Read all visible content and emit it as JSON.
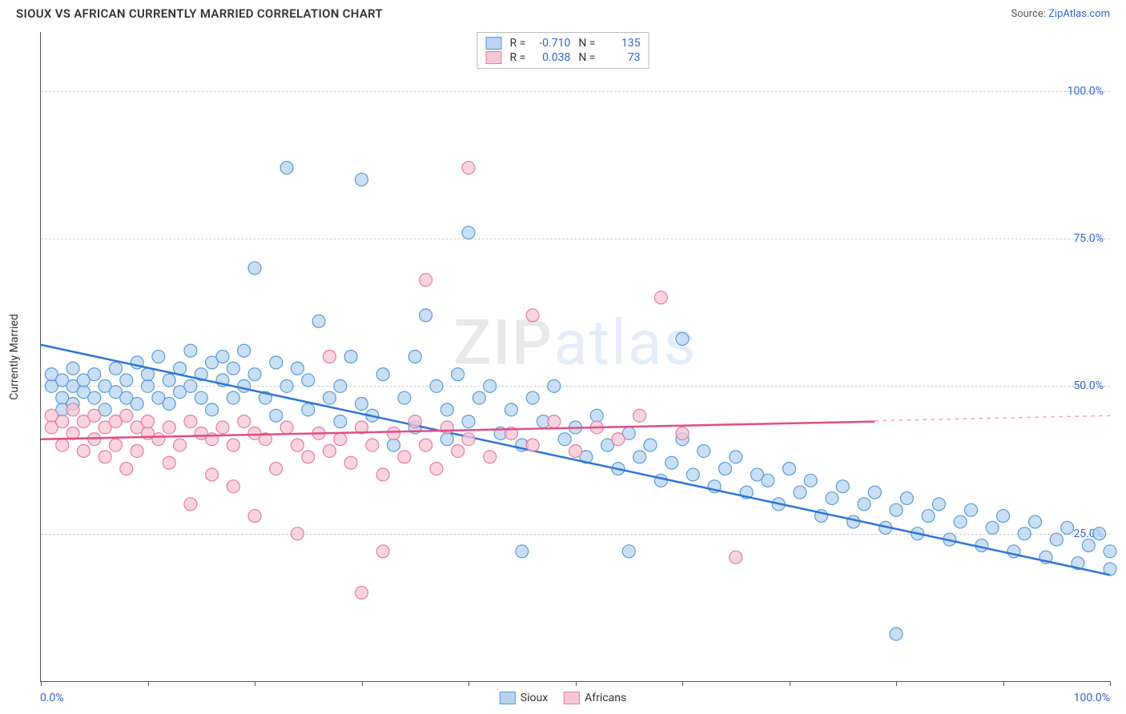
{
  "title": "SIOUX VS AFRICAN CURRENTLY MARRIED CORRELATION CHART",
  "source_prefix": "Source: ",
  "source_link": "ZipAtlas.com",
  "ylabel": "Currently Married",
  "watermark_z": "ZIP",
  "watermark_rest": "atlas",
  "chart": {
    "type": "scatter",
    "xlim": [
      0,
      100
    ],
    "ylim": [
      0,
      110
    ],
    "y_gridlines": [
      25,
      50,
      75,
      100
    ],
    "y_tick_labels": [
      "25.0%",
      "50.0%",
      "75.0%",
      "100.0%"
    ],
    "x_ticks": [
      0,
      10,
      20,
      30,
      40,
      50,
      60,
      70,
      80,
      90,
      100
    ],
    "x_tick_labels_shown": {
      "0": "0.0%",
      "100": "100.0%"
    },
    "background_color": "#ffffff",
    "grid_color": "#cccccc",
    "marker_radius": 8,
    "marker_stroke_width": 1.2,
    "trend_line_width": 2.5,
    "series": [
      {
        "name": "Sioux",
        "fill": "#b8d4f0",
        "stroke": "#5a9bd5",
        "line_color": "#2e75d6",
        "R": "-0.710",
        "N": "135",
        "trend": {
          "x1": 0,
          "y1": 57,
          "x2": 100,
          "y2": 18,
          "dash_from_x": 100
        },
        "points": [
          [
            1,
            50
          ],
          [
            1,
            52
          ],
          [
            2,
            48
          ],
          [
            2,
            46
          ],
          [
            2,
            51
          ],
          [
            3,
            50
          ],
          [
            3,
            53
          ],
          [
            3,
            47
          ],
          [
            4,
            49
          ],
          [
            4,
            51
          ],
          [
            5,
            48
          ],
          [
            5,
            52
          ],
          [
            6,
            50
          ],
          [
            6,
            46
          ],
          [
            7,
            49
          ],
          [
            7,
            53
          ],
          [
            8,
            48
          ],
          [
            8,
            51
          ],
          [
            9,
            47
          ],
          [
            9,
            54
          ],
          [
            10,
            50
          ],
          [
            10,
            52
          ],
          [
            11,
            48
          ],
          [
            11,
            55
          ],
          [
            12,
            51
          ],
          [
            12,
            47
          ],
          [
            13,
            53
          ],
          [
            13,
            49
          ],
          [
            14,
            56
          ],
          [
            14,
            50
          ],
          [
            15,
            52
          ],
          [
            15,
            48
          ],
          [
            16,
            54
          ],
          [
            16,
            46
          ],
          [
            17,
            55
          ],
          [
            17,
            51
          ],
          [
            18,
            53
          ],
          [
            18,
            48
          ],
          [
            19,
            56
          ],
          [
            19,
            50
          ],
          [
            20,
            70
          ],
          [
            20,
            52
          ],
          [
            21,
            48
          ],
          [
            22,
            54
          ],
          [
            22,
            45
          ],
          [
            23,
            87
          ],
          [
            23,
            50
          ],
          [
            24,
            53
          ],
          [
            25,
            51
          ],
          [
            25,
            46
          ],
          [
            26,
            61
          ],
          [
            27,
            48
          ],
          [
            28,
            50
          ],
          [
            28,
            44
          ],
          [
            29,
            55
          ],
          [
            30,
            85
          ],
          [
            30,
            47
          ],
          [
            31,
            45
          ],
          [
            32,
            52
          ],
          [
            33,
            40
          ],
          [
            34,
            48
          ],
          [
            35,
            55
          ],
          [
            35,
            43
          ],
          [
            36,
            62
          ],
          [
            37,
            50
          ],
          [
            38,
            46
          ],
          [
            38,
            41
          ],
          [
            39,
            52
          ],
          [
            40,
            76
          ],
          [
            40,
            44
          ],
          [
            41,
            48
          ],
          [
            42,
            50
          ],
          [
            43,
            42
          ],
          [
            44,
            46
          ],
          [
            45,
            40
          ],
          [
            45,
            22
          ],
          [
            46,
            48
          ],
          [
            47,
            44
          ],
          [
            48,
            50
          ],
          [
            49,
            41
          ],
          [
            50,
            43
          ],
          [
            51,
            38
          ],
          [
            52,
            45
          ],
          [
            53,
            40
          ],
          [
            54,
            36
          ],
          [
            55,
            42
          ],
          [
            55,
            22
          ],
          [
            56,
            38
          ],
          [
            57,
            40
          ],
          [
            58,
            34
          ],
          [
            59,
            37
          ],
          [
            60,
            41
          ],
          [
            60,
            58
          ],
          [
            61,
            35
          ],
          [
            62,
            39
          ],
          [
            63,
            33
          ],
          [
            64,
            36
          ],
          [
            65,
            38
          ],
          [
            66,
            32
          ],
          [
            67,
            35
          ],
          [
            68,
            34
          ],
          [
            69,
            30
          ],
          [
            70,
            36
          ],
          [
            71,
            32
          ],
          [
            72,
            34
          ],
          [
            73,
            28
          ],
          [
            74,
            31
          ],
          [
            75,
            33
          ],
          [
            76,
            27
          ],
          [
            77,
            30
          ],
          [
            78,
            32
          ],
          [
            79,
            26
          ],
          [
            80,
            29
          ],
          [
            81,
            31
          ],
          [
            82,
            25
          ],
          [
            83,
            28
          ],
          [
            84,
            30
          ],
          [
            85,
            24
          ],
          [
            86,
            27
          ],
          [
            87,
            29
          ],
          [
            88,
            23
          ],
          [
            89,
            26
          ],
          [
            90,
            28
          ],
          [
            91,
            22
          ],
          [
            92,
            25
          ],
          [
            93,
            27
          ],
          [
            94,
            21
          ],
          [
            95,
            24
          ],
          [
            96,
            26
          ],
          [
            97,
            20
          ],
          [
            98,
            23
          ],
          [
            99,
            25
          ],
          [
            100,
            19
          ],
          [
            100,
            22
          ],
          [
            80,
            8
          ]
        ]
      },
      {
        "name": "Africans",
        "fill": "#f5c6d6",
        "stroke": "#e57ba0",
        "line_color": "#e54b87",
        "R": "0.038",
        "N": "73",
        "trend": {
          "x1": 0,
          "y1": 41,
          "x2": 78,
          "y2": 44,
          "dash_from_x": 78,
          "dash_x2": 100,
          "dash_y2": 45
        },
        "points": [
          [
            1,
            45
          ],
          [
            1,
            43
          ],
          [
            2,
            44
          ],
          [
            2,
            40
          ],
          [
            3,
            46
          ],
          [
            3,
            42
          ],
          [
            4,
            44
          ],
          [
            4,
            39
          ],
          [
            5,
            45
          ],
          [
            5,
            41
          ],
          [
            6,
            43
          ],
          [
            6,
            38
          ],
          [
            7,
            44
          ],
          [
            7,
            40
          ],
          [
            8,
            45
          ],
          [
            8,
            36
          ],
          [
            9,
            43
          ],
          [
            9,
            39
          ],
          [
            10,
            42
          ],
          [
            10,
            44
          ],
          [
            11,
            41
          ],
          [
            12,
            43
          ],
          [
            12,
            37
          ],
          [
            13,
            40
          ],
          [
            14,
            44
          ],
          [
            14,
            30
          ],
          [
            15,
            42
          ],
          [
            16,
            41
          ],
          [
            16,
            35
          ],
          [
            17,
            43
          ],
          [
            18,
            40
          ],
          [
            18,
            33
          ],
          [
            19,
            44
          ],
          [
            20,
            42
          ],
          [
            20,
            28
          ],
          [
            21,
            41
          ],
          [
            22,
            36
          ],
          [
            23,
            43
          ],
          [
            24,
            40
          ],
          [
            24,
            25
          ],
          [
            25,
            38
          ],
          [
            26,
            42
          ],
          [
            27,
            55
          ],
          [
            27,
            39
          ],
          [
            28,
            41
          ],
          [
            29,
            37
          ],
          [
            30,
            43
          ],
          [
            30,
            15
          ],
          [
            31,
            40
          ],
          [
            32,
            35
          ],
          [
            32,
            22
          ],
          [
            33,
            42
          ],
          [
            34,
            38
          ],
          [
            35,
            44
          ],
          [
            36,
            68
          ],
          [
            36,
            40
          ],
          [
            37,
            36
          ],
          [
            38,
            43
          ],
          [
            39,
            39
          ],
          [
            40,
            87
          ],
          [
            40,
            41
          ],
          [
            42,
            38
          ],
          [
            44,
            42
          ],
          [
            46,
            62
          ],
          [
            46,
            40
          ],
          [
            48,
            44
          ],
          [
            50,
            39
          ],
          [
            52,
            43
          ],
          [
            54,
            41
          ],
          [
            56,
            45
          ],
          [
            58,
            65
          ],
          [
            60,
            42
          ],
          [
            65,
            21
          ]
        ]
      }
    ]
  },
  "stats_legend": {
    "r_label": "R =",
    "n_label": "N ="
  },
  "bottom_legend": [
    "Sioux",
    "Africans"
  ]
}
